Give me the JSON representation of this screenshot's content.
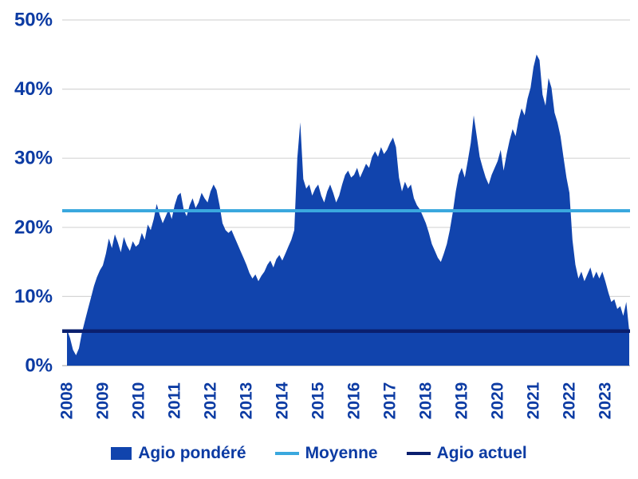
{
  "colors": {
    "text": "#0c3ba3",
    "area": "#1144ad",
    "moyenne": "#3aa8de",
    "actuel": "#0a1f6e",
    "gridline": "#d6d6d6",
    "baseline": "#bfbfbf",
    "background": "#ffffff"
  },
  "chart_data": {
    "type": "area",
    "title": "",
    "xlabel": "",
    "ylabel": "",
    "ylim": [
      0,
      50
    ],
    "grid": "horizontal",
    "legend_position": "bottom",
    "y_ticks": [
      "0%",
      "10%",
      "20%",
      "30%",
      "40%",
      "50%"
    ],
    "x_ticks": [
      "2008",
      "2009",
      "2010",
      "2011",
      "2012",
      "2013",
      "2014",
      "2015",
      "2016",
      "2017",
      "2018",
      "2019",
      "2020",
      "2021",
      "2022",
      "2023"
    ],
    "x_unit": "year",
    "sampling": "monthly from 2008-01 to 2023-09",
    "series": [
      {
        "name": "Agio pondéré",
        "type": "area",
        "color": "#1144ad",
        "monthly_values": [
          5.2,
          4.0,
          2.3,
          1.5,
          2.5,
          4.8,
          6.5,
          8.2,
          9.8,
          11.5,
          12.8,
          13.8,
          14.5,
          16.2,
          18.4,
          17.0,
          19.0,
          17.8,
          16.4,
          18.6,
          17.4,
          16.6,
          18.0,
          17.2,
          17.6,
          19.2,
          18.2,
          20.4,
          19.6,
          21.2,
          23.4,
          21.8,
          20.6,
          21.6,
          22.6,
          21.2,
          23.2,
          24.6,
          25.0,
          22.6,
          21.6,
          23.2,
          24.2,
          22.8,
          23.6,
          25.0,
          24.2,
          23.6,
          25.2,
          26.2,
          25.4,
          23.2,
          20.6,
          19.6,
          19.2,
          19.6,
          18.6,
          17.6,
          16.6,
          15.6,
          14.6,
          13.4,
          12.6,
          13.2,
          12.2,
          13.0,
          13.6,
          14.6,
          15.2,
          14.2,
          15.4,
          16.0,
          15.2,
          16.2,
          17.2,
          18.2,
          19.6,
          30.0,
          35.2,
          27.0,
          25.6,
          26.2,
          24.6,
          25.6,
          26.2,
          24.6,
          23.6,
          25.2,
          26.2,
          25.0,
          23.6,
          24.6,
          26.2,
          27.6,
          28.2,
          27.2,
          27.6,
          28.6,
          27.2,
          28.2,
          29.2,
          28.6,
          30.2,
          31.0,
          30.2,
          31.6,
          30.6,
          31.2,
          32.2,
          33.0,
          31.6,
          27.2,
          25.2,
          26.6,
          25.6,
          26.2,
          24.2,
          23.2,
          22.6,
          21.6,
          20.6,
          19.2,
          17.6,
          16.6,
          15.6,
          15.0,
          16.2,
          17.6,
          19.6,
          22.2,
          25.2,
          27.6,
          28.6,
          27.2,
          29.6,
          32.2,
          36.2,
          33.2,
          30.2,
          28.6,
          27.2,
          26.2,
          27.6,
          28.6,
          29.6,
          31.2,
          28.2,
          30.6,
          32.6,
          34.2,
          33.2,
          35.6,
          37.2,
          36.2,
          38.6,
          40.2,
          43.2,
          45.0,
          44.2,
          39.2,
          37.6,
          41.6,
          40.2,
          36.6,
          35.2,
          33.2,
          30.2,
          27.2,
          25.0,
          18.2,
          14.6,
          12.6,
          13.6,
          12.2,
          13.2,
          14.2,
          12.6,
          13.6,
          12.6,
          13.6,
          12.2,
          10.6,
          9.2,
          9.6,
          8.2,
          8.6,
          7.2,
          9.2,
          5.0
        ]
      },
      {
        "name": "Moyenne",
        "type": "hline",
        "color": "#3aa8de",
        "value": 22.4
      },
      {
        "name": "Agio actuel",
        "type": "hline",
        "color": "#0a1f6e",
        "value": 5.0
      }
    ]
  },
  "legend": {
    "items": [
      {
        "label": "Agio pondéré",
        "swatch": "rect",
        "color": "#1144ad"
      },
      {
        "label": "Moyenne",
        "swatch": "line",
        "color": "#3aa8de"
      },
      {
        "label": "Agio actuel",
        "swatch": "line",
        "color": "#0a1f6e"
      }
    ]
  }
}
